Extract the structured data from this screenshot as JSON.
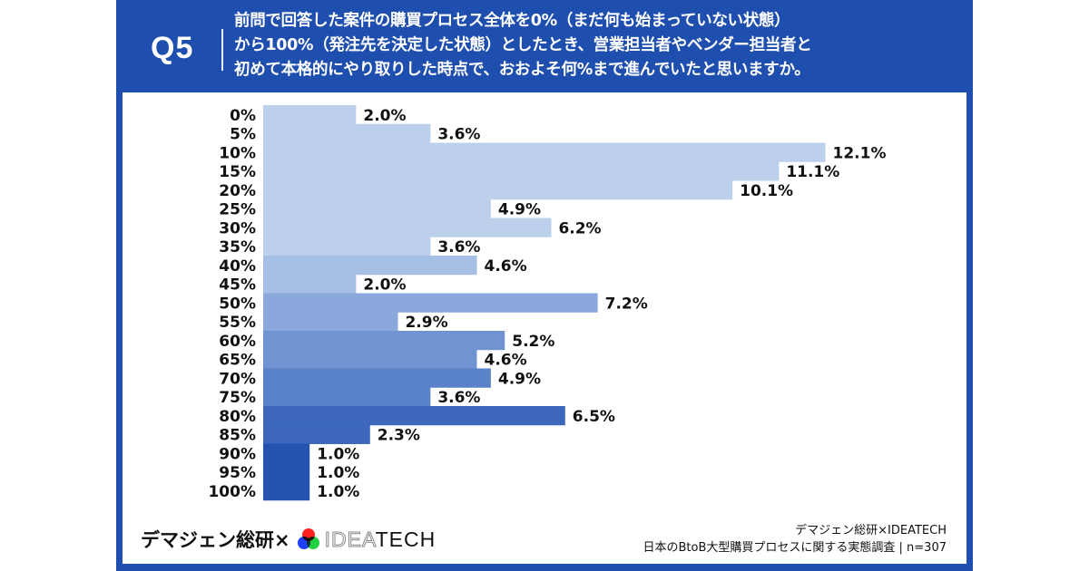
{
  "header": {
    "question_id": "Q5",
    "question_lines": [
      "前問で回答した案件の購買プロセス全体を0%（まだ何も始まっていない状態）",
      "から100%（発注先を決定した状態）としたとき、営業担当者やベンダー担当者と",
      "初めて本格的にやり取りした時点で、おおよそ何%まで進んでいたと思いますか。"
    ]
  },
  "colors": {
    "frame": "#1f4fae",
    "groups": [
      "#bcd0ec",
      "#a6bfe5",
      "#8aa8db",
      "#7094d2",
      "#5a82c8",
      "#3d68bc",
      "#2453b0"
    ]
  },
  "chart_data": {
    "type": "bar",
    "orientation": "horizontal",
    "title": "",
    "xlabel": "",
    "ylabel": "",
    "categories": [
      "0%",
      "5%",
      "10%",
      "15%",
      "20%",
      "25%",
      "30%",
      "35%",
      "40%",
      "45%",
      "50%",
      "55%",
      "60%",
      "65%",
      "70%",
      "75%",
      "80%",
      "85%",
      "90%",
      "95%",
      "100%"
    ],
    "values": [
      2.0,
      3.6,
      12.1,
      11.1,
      10.1,
      4.9,
      6.2,
      3.6,
      4.6,
      2.0,
      7.2,
      2.9,
      5.2,
      4.6,
      4.9,
      3.6,
      6.5,
      2.3,
      1.0,
      1.0,
      1.0
    ],
    "data_labels": [
      "2.0%",
      "3.6%",
      "12.1%",
      "11.1%",
      "10.1%",
      "4.9%",
      "6.2%",
      "3.6%",
      "4.6%",
      "2.0%",
      "7.2%",
      "2.9%",
      "5.2%",
      "4.6%",
      "4.9%",
      "3.6%",
      "6.5%",
      "2.3%",
      "1.0%",
      "1.0%",
      "1.0%"
    ],
    "color_groups": [
      0,
      0,
      0,
      0,
      0,
      0,
      0,
      0,
      1,
      1,
      2,
      2,
      3,
      3,
      4,
      4,
      5,
      5,
      6,
      6,
      6
    ],
    "unit": "%",
    "grid": false,
    "legend": "none"
  },
  "footer": {
    "brand_left": "デマジェン総研×",
    "logo_text_outline": "IDEA",
    "logo_text_solid": "TECH",
    "source_line1": "デマジェン総研×IDEATECH",
    "source_line2": "日本のBtoB大型購買プロセスに関する実態調査 | n=307"
  }
}
